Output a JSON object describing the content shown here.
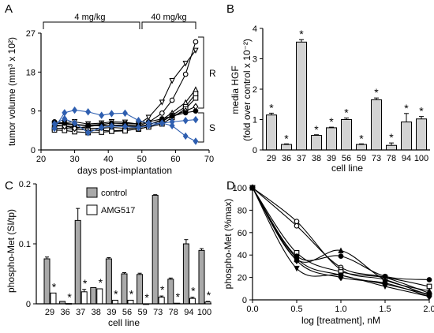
{
  "figure": {
    "panel_labels": [
      "A",
      "B",
      "C",
      "D"
    ]
  },
  "chart_data": [
    {
      "panel": "A",
      "type": "line",
      "xlabel": "days post-implantation",
      "ylabel": "tumor volume (mm³ x 10²)",
      "xlim": [
        20,
        70
      ],
      "ylim": [
        0,
        27
      ],
      "xticks": [
        "20",
        "30",
        "40",
        "50",
        "60",
        "70"
      ],
      "yticks": [
        "0",
        "9",
        "18",
        "27"
      ],
      "x": [
        24,
        27,
        30,
        34,
        38,
        41,
        45,
        49,
        52,
        56,
        59,
        63,
        66
      ],
      "annotations": {
        "dose_low": "4 mg/kg",
        "dose_high": "40 mg/kg",
        "group_R": "R",
        "group_S": "S"
      },
      "colors": {
        "black": "#000000",
        "blue": "#2f5fb0"
      },
      "series": [
        {
          "group": "R",
          "marker": "circle",
          "color": "#000000",
          "values": [
            6.2,
            6.0,
            5.8,
            5.6,
            5.6,
            5.7,
            5.8,
            5.6,
            6.4,
            8.5,
            11.5,
            17.5,
            25.0
          ]
        },
        {
          "group": "R",
          "marker": "triangle-down",
          "color": "#000000",
          "values": [
            6.0,
            6.3,
            6.5,
            6.0,
            6.2,
            6.5,
            6.4,
            6.0,
            7.5,
            11.0,
            16.0,
            20.0,
            23.0
          ]
        },
        {
          "group": "R",
          "marker": "triangle-up",
          "color": "#000000",
          "values": [
            5.5,
            5.6,
            5.3,
            5.0,
            5.0,
            5.2,
            5.0,
            5.1,
            5.8,
            7.0,
            8.6,
            11.0,
            14.0
          ]
        },
        {
          "group": "R",
          "marker": "square",
          "color": "#000000",
          "values": [
            5.0,
            5.0,
            4.8,
            4.6,
            4.5,
            4.4,
            4.6,
            4.8,
            5.4,
            6.5,
            8.0,
            10.0,
            13.0
          ]
        },
        {
          "group": "R",
          "marker": "square",
          "color": "#000000",
          "values": [
            4.6,
            4.5,
            4.2,
            4.0,
            4.1,
            4.3,
            4.4,
            4.9,
            5.3,
            6.0,
            7.5,
            9.5,
            12.0
          ]
        },
        {
          "group": "R",
          "marker": "diamond",
          "color": "#000000",
          "values": [
            5.8,
            5.5,
            5.0,
            5.4,
            5.8,
            5.6,
            5.5,
            5.4,
            5.9,
            6.8,
            7.8,
            9.0,
            10.0
          ]
        },
        {
          "group": "S",
          "marker": "circle-filled",
          "color": "#000000",
          "values": [
            6.5,
            6.2,
            5.9,
            5.7,
            5.9,
            6.2,
            6.1,
            6.0,
            6.5,
            7.2,
            7.8,
            8.6,
            9.0
          ]
        },
        {
          "group": "S",
          "marker": "diamond-filled",
          "color": "#2f5fb0",
          "values": [
            5.0,
            8.6,
            9.2,
            8.8,
            8.0,
            8.4,
            8.5,
            6.8,
            6.2,
            6.2,
            6.5,
            6.8,
            7.0
          ]
        },
        {
          "group": "S",
          "marker": "diamond-filled",
          "color": "#2f5fb0",
          "values": [
            6.0,
            7.2,
            6.2,
            4.0,
            5.2,
            5.5,
            5.4,
            5.2,
            5.6,
            6.2,
            5.6,
            3.2,
            2.0
          ]
        }
      ]
    },
    {
      "panel": "B",
      "type": "bar",
      "xlabel": "cell line",
      "ylabel_line1": "media HGF",
      "ylabel_line2": "(fold over control x 10⁻²)",
      "ylim": [
        0,
        4
      ],
      "yticks": [
        "0",
        "1",
        "2",
        "3",
        "4"
      ],
      "categories": [
        "29",
        "36",
        "37",
        "38",
        "39",
        "56",
        "59",
        "73",
        "78",
        "94",
        "100"
      ],
      "values": [
        1.15,
        0.18,
        3.55,
        0.48,
        0.73,
        1.0,
        0.18,
        1.65,
        0.15,
        0.92,
        1.02
      ],
      "errors": [
        0.06,
        0.02,
        0.08,
        0.02,
        0.02,
        0.05,
        0.02,
        0.06,
        0.08,
        0.28,
        0.08
      ],
      "significant": [
        true,
        true,
        true,
        true,
        true,
        true,
        true,
        true,
        true,
        true,
        true
      ],
      "star_symbol": "*",
      "color": "#d3d3d3"
    },
    {
      "panel": "C",
      "type": "bar",
      "xlabel": "cell line",
      "ylabel": "phospho-Met (SI/tp)",
      "ylim": [
        0,
        0.2
      ],
      "yticks": [
        "0",
        "0.1",
        "0.2"
      ],
      "categories": [
        "29",
        "36",
        "37",
        "38",
        "39",
        "56",
        "59",
        "73",
        "78",
        "94",
        "100"
      ],
      "series": [
        {
          "name": "control",
          "color": "#a9a9a9",
          "values": [
            0.075,
            0.004,
            0.139,
            0.027,
            0.075,
            0.05,
            0.049,
            0.181,
            0.041,
            0.1,
            0.089
          ],
          "errors": [
            0.003,
            0.0,
            0.02,
            0.0,
            0.002,
            0.002,
            0.002,
            0.001,
            0.002,
            0.007,
            0.003
          ]
        },
        {
          "name": "AMG517",
          "color": "#ffffff",
          "values": [
            0.018,
            0.0005,
            0.02,
            0.025,
            0.006,
            0.006,
            0.0,
            0.011,
            0.001,
            0.009,
            0.003
          ],
          "errors": [
            0.0,
            0.0,
            0.004,
            0.0,
            0.0,
            0.0,
            0.0,
            0.002,
            0.0,
            0.002,
            0.001
          ]
        }
      ],
      "significant": [
        true,
        true,
        true,
        true,
        true,
        true,
        true,
        true,
        true,
        true,
        true
      ],
      "star_symbol": "*"
    },
    {
      "panel": "D",
      "type": "scatter",
      "xlabel": "log [treatment], nM",
      "ylabel": "phospho-Met (%max)",
      "xlim": [
        0,
        2
      ],
      "ylim": [
        0,
        100
      ],
      "xticks": [
        "0.0",
        "0.5",
        "1.0",
        "1.5",
        "2.0"
      ],
      "yticks": [
        "0",
        "20",
        "40",
        "60",
        "80",
        "100"
      ],
      "x": [
        0,
        0.5,
        1.0,
        1.5,
        2.0
      ],
      "series": [
        {
          "marker": "circle-open",
          "values": [
            100,
            66,
            29,
            20,
            6
          ]
        },
        {
          "marker": "circle-open",
          "values": [
            100,
            70,
            27,
            18,
            4
          ]
        },
        {
          "marker": "square-open",
          "values": [
            100,
            42,
            25,
            20,
            12
          ]
        },
        {
          "marker": "circle-filled",
          "values": [
            100,
            39,
            39,
            21,
            18
          ]
        },
        {
          "marker": "triangle-filled",
          "values": [
            100,
            36,
            44,
            18,
            8
          ]
        },
        {
          "marker": "diamond-filled",
          "values": [
            100,
            35,
            20,
            15,
            3
          ]
        },
        {
          "marker": "circle-filled",
          "values": [
            100,
            37,
            22,
            14,
            5
          ]
        },
        {
          "marker": "triangle-down-filled",
          "values": [
            100,
            28,
            22,
            12,
            3
          ]
        }
      ]
    }
  ]
}
